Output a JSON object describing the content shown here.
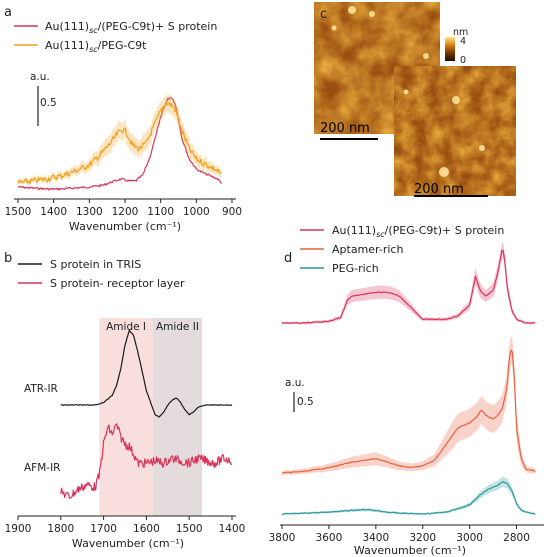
{
  "colors": {
    "red": "#d9345a",
    "orange": "#f2a11c",
    "black": "#1a1a1a",
    "coral": "#e8603c",
    "teal": "#2a9a9a",
    "amide1": "#f9dede",
    "amide2": "#e4dcdc"
  },
  "panels": {
    "a": {
      "label": "a"
    },
    "b": {
      "label": "b"
    },
    "c": {
      "label": "c",
      "scalebar1": "200 nm",
      "scalebar2": "200 nm",
      "colorbar_unit": "nm",
      "colorbar_max": "4",
      "colorbar_min": "0"
    },
    "d": {
      "label": "d"
    }
  },
  "chart_data": [
    {
      "panel": "a",
      "type": "line",
      "xlabel": "Wavenumber (cm⁻¹)",
      "xlim": [
        1500,
        900
      ],
      "xticks": [
        "1500",
        "1400",
        "1300",
        "1200",
        "1100",
        "1000",
        "900"
      ],
      "scale_label": "a.u.",
      "scale_value": "0.5",
      "series": [
        {
          "name_main": "Au(111)",
          "name_sub": "sc",
          "name_rest": "/(PEG-C9t)+ S protein",
          "color_key": "red",
          "x": [
            1500,
            1460,
            1420,
            1380,
            1340,
            1300,
            1260,
            1230,
            1210,
            1190,
            1170,
            1150,
            1130,
            1110,
            1095,
            1080,
            1070,
            1060,
            1050,
            1040,
            1020,
            1000,
            980,
            960,
            940,
            930
          ],
          "y": [
            0.02,
            0.01,
            0.0,
            0.0,
            0.01,
            0.02,
            0.04,
            0.08,
            0.1,
            0.08,
            0.08,
            0.14,
            0.32,
            0.58,
            0.78,
            0.9,
            0.92,
            0.86,
            0.7,
            0.5,
            0.3,
            0.2,
            0.16,
            0.13,
            0.1,
            0.06
          ]
        },
        {
          "name_main": "Au(111)",
          "name_sub": "sc",
          "name_rest": "/PEG-C9t",
          "color_key": "orange",
          "x": [
            1500,
            1460,
            1420,
            1380,
            1340,
            1300,
            1270,
            1240,
            1220,
            1205,
            1195,
            1180,
            1160,
            1140,
            1120,
            1100,
            1085,
            1070,
            1060,
            1050,
            1040,
            1020,
            1000,
            980,
            960,
            940,
            930
          ],
          "y": [
            0.06,
            0.08,
            0.1,
            0.13,
            0.18,
            0.24,
            0.34,
            0.46,
            0.56,
            0.6,
            0.56,
            0.44,
            0.4,
            0.46,
            0.62,
            0.78,
            0.86,
            0.84,
            0.8,
            0.7,
            0.58,
            0.4,
            0.3,
            0.26,
            0.22,
            0.18,
            0.14
          ]
        }
      ]
    },
    {
      "panel": "b",
      "type": "line",
      "xlabel": "Wavenumber (cm⁻¹)",
      "xlim": [
        1900,
        1400
      ],
      "xticks": [
        "1900",
        "1800",
        "1700",
        "1600",
        "1500",
        "1400"
      ],
      "bands": [
        {
          "label": "Amide I",
          "from": 1710,
          "to": 1585,
          "color_key": "amide1"
        },
        {
          "label": "Amide II",
          "from": 1585,
          "to": 1470,
          "color_key": "amide2"
        }
      ],
      "trace_labels": [
        "ATR-IR",
        "AFM-IR"
      ],
      "series": [
        {
          "name": "S protein in TRIS",
          "color_key": "black",
          "x": [
            1800,
            1760,
            1720,
            1700,
            1680,
            1670,
            1660,
            1650,
            1640,
            1630,
            1620,
            1610,
            1600,
            1590,
            1580,
            1570,
            1560,
            1550,
            1540,
            1530,
            1520,
            1510,
            1500,
            1490,
            1480,
            1460,
            1440,
            1420,
            1400
          ],
          "y": [
            0.0,
            0.0,
            0.0,
            0.02,
            0.08,
            0.16,
            0.3,
            0.5,
            0.62,
            0.58,
            0.44,
            0.28,
            0.12,
            0.02,
            -0.08,
            -0.1,
            -0.06,
            0.0,
            0.04,
            0.06,
            0.02,
            -0.04,
            -0.08,
            -0.06,
            -0.02,
            0.0,
            0.0,
            0.0,
            0.0
          ]
        },
        {
          "name": "S protein- receptor layer",
          "color_key": "red",
          "x": [
            1800,
            1780,
            1760,
            1740,
            1720,
            1710,
            1700,
            1690,
            1680,
            1670,
            1660,
            1650,
            1640,
            1630,
            1620,
            1600,
            1580,
            1560,
            1540,
            1520,
            1500,
            1480,
            1460,
            1440,
            1420,
            1400
          ],
          "y": [
            0.0,
            -0.04,
            0.02,
            0.06,
            0.04,
            0.14,
            0.4,
            0.54,
            0.48,
            0.56,
            0.46,
            0.4,
            0.38,
            0.32,
            0.24,
            0.24,
            0.26,
            0.24,
            0.28,
            0.26,
            0.24,
            0.28,
            0.26,
            0.24,
            0.28,
            0.26
          ]
        }
      ]
    },
    {
      "panel": "d",
      "type": "line",
      "xlabel": "Wavenumber (cm⁻¹)",
      "xlim": [
        3800,
        2700
      ],
      "xticks": [
        "3800",
        "3600",
        "3400",
        "3200",
        "3000",
        "2800"
      ],
      "scale_label": "a.u.",
      "scale_value": "0.5",
      "series": [
        {
          "name_main": "Au(111)",
          "name_sub": "sc",
          "name_rest": "/(PEG-C9t)+ S protein",
          "color_key": "red",
          "x": [
            3800,
            3700,
            3600,
            3550,
            3520,
            3500,
            3450,
            3400,
            3350,
            3300,
            3260,
            3200,
            3100,
            3050,
            3000,
            2975,
            2960,
            2950,
            2930,
            2900,
            2880,
            2860,
            2850,
            2840,
            2820,
            2800,
            2760,
            2720
          ],
          "y": [
            0.0,
            0.0,
            0.02,
            0.06,
            0.26,
            0.3,
            0.32,
            0.34,
            0.34,
            0.3,
            0.2,
            0.04,
            0.04,
            0.08,
            0.2,
            0.52,
            0.4,
            0.34,
            0.3,
            0.36,
            0.56,
            0.84,
            0.7,
            0.4,
            0.14,
            0.04,
            0.0,
            0.0
          ]
        },
        {
          "name": "Aptamer-rich",
          "color_key": "coral",
          "x": [
            3800,
            3700,
            3600,
            3500,
            3450,
            3400,
            3350,
            3300,
            3250,
            3200,
            3150,
            3100,
            3050,
            3000,
            2970,
            2950,
            2930,
            2900,
            2880,
            2860,
            2840,
            2830,
            2820,
            2810,
            2800,
            2780,
            2760,
            2720
          ],
          "y": [
            0.0,
            0.02,
            0.06,
            0.12,
            0.14,
            0.16,
            0.12,
            0.08,
            0.06,
            0.08,
            0.14,
            0.32,
            0.5,
            0.56,
            0.62,
            0.7,
            0.64,
            0.6,
            0.64,
            0.72,
            0.96,
            1.3,
            1.4,
            1.1,
            0.5,
            0.16,
            0.04,
            0.02
          ]
        },
        {
          "name": "PEG-rich",
          "color_key": "teal",
          "x": [
            3800,
            3700,
            3600,
            3500,
            3450,
            3400,
            3350,
            3300,
            3200,
            3100,
            3050,
            3000,
            2960,
            2930,
            2900,
            2880,
            2860,
            2840,
            2820,
            2800,
            2780,
            2760,
            2720
          ],
          "y": [
            0.0,
            0.01,
            0.02,
            0.04,
            0.05,
            0.04,
            0.02,
            0.01,
            0.0,
            0.02,
            0.06,
            0.1,
            0.2,
            0.26,
            0.3,
            0.32,
            0.36,
            0.34,
            0.26,
            0.12,
            0.04,
            0.02,
            0.0
          ]
        }
      ]
    }
  ]
}
